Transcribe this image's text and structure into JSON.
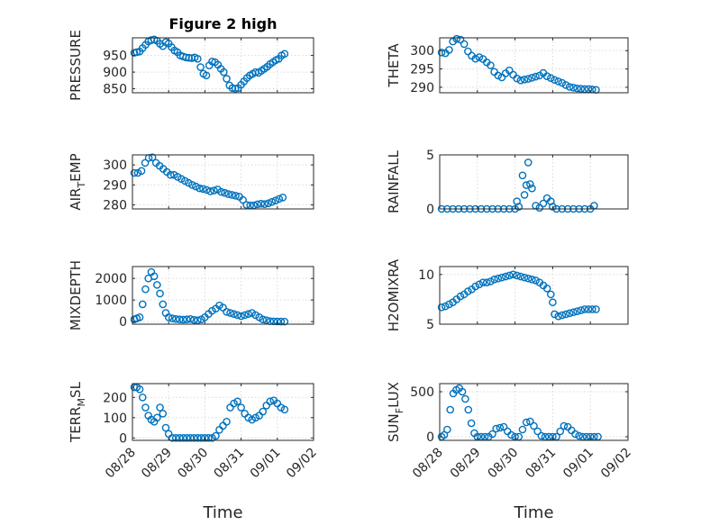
{
  "figure_title": "Figure 2 high",
  "x_label": "Time",
  "date_ticks": [
    "08/28",
    "08/29",
    "08/30",
    "08/31",
    "09/01",
    "09/02"
  ],
  "marker_color": "#0072BD",
  "chart_data": [
    {
      "type": "scatter",
      "name": "PRESSURE",
      "ylabel": "PRESSURE",
      "xlim": [
        "08/28",
        "09/02"
      ],
      "ylim": [
        838,
        1003
      ],
      "yticks": [
        850,
        900,
        950
      ],
      "grid": true,
      "x": [
        0.05,
        0.12,
        0.2,
        0.28,
        0.36,
        0.44,
        0.52,
        0.6,
        0.68,
        0.76,
        0.84,
        0.92,
        1.0,
        1.08,
        1.16,
        1.24,
        1.32,
        1.4,
        1.48,
        1.56,
        1.64,
        1.72,
        1.8,
        1.88,
        1.96,
        2.04,
        2.12,
        2.2,
        2.28,
        2.36,
        2.44,
        2.52,
        2.6,
        2.68,
        2.76,
        2.84,
        2.92,
        3.0,
        3.08,
        3.16,
        3.24,
        3.32,
        3.4,
        3.48,
        3.56,
        3.64,
        3.72,
        3.8,
        3.88,
        3.96,
        4.04,
        4.12,
        4.2
      ],
      "y": [
        958,
        960,
        962,
        972,
        982,
        992,
        996,
        998,
        994,
        985,
        978,
        990,
        986,
        975,
        965,
        960,
        950,
        947,
        944,
        943,
        942,
        944,
        940,
        915,
        895,
        890,
        920,
        932,
        930,
        922,
        910,
        900,
        880,
        860,
        852,
        850,
        852,
        862,
        872,
        882,
        890,
        895,
        900,
        898,
        904,
        910,
        916,
        924,
        930,
        936,
        940,
        950,
        955
      ]
    },
    {
      "type": "scatter",
      "name": "THETA",
      "ylabel": "THETA",
      "xlim": [
        "08/28",
        "09/02"
      ],
      "ylim": [
        288.5,
        303.5
      ],
      "yticks": [
        290,
        295,
        300
      ],
      "grid": true,
      "x": [
        0.05,
        0.15,
        0.25,
        0.35,
        0.45,
        0.55,
        0.65,
        0.75,
        0.85,
        0.95,
        1.05,
        1.15,
        1.25,
        1.35,
        1.45,
        1.55,
        1.65,
        1.75,
        1.85,
        1.95,
        2.05,
        2.15,
        2.25,
        2.35,
        2.45,
        2.55,
        2.65,
        2.75,
        2.85,
        2.95,
        3.05,
        3.15,
        3.25,
        3.35,
        3.45,
        3.55,
        3.65,
        3.75,
        3.85,
        3.95,
        4.05,
        4.15
      ],
      "y": [
        299.5,
        299.3,
        300.2,
        302.5,
        303.2,
        303.0,
        301.8,
        299.8,
        298.6,
        297.8,
        298.2,
        297.7,
        296.8,
        296.0,
        294.2,
        293.2,
        292.7,
        293.8,
        294.6,
        293.4,
        292.4,
        291.9,
        292.1,
        292.3,
        292.6,
        292.9,
        293.2,
        293.9,
        293.0,
        292.5,
        292.0,
        291.6,
        291.2,
        290.6,
        290.1,
        289.9,
        289.7,
        289.6,
        289.5,
        289.5,
        289.4,
        289.3
      ]
    },
    {
      "type": "scatter",
      "name": "AIR_TEMP",
      "ylabel": "AIR_TEMP",
      "xlim": [
        "08/28",
        "09/02"
      ],
      "ylim": [
        278,
        305
      ],
      "yticks": [
        280,
        290,
        300
      ],
      "grid": true,
      "x": [
        0.05,
        0.15,
        0.25,
        0.35,
        0.45,
        0.55,
        0.65,
        0.75,
        0.85,
        0.95,
        1.05,
        1.15,
        1.25,
        1.35,
        1.45,
        1.55,
        1.65,
        1.75,
        1.85,
        1.95,
        2.05,
        2.15,
        2.25,
        2.35,
        2.45,
        2.55,
        2.65,
        2.75,
        2.85,
        2.95,
        3.05,
        3.15,
        3.25,
        3.35,
        3.45,
        3.55,
        3.65,
        3.75,
        3.85,
        3.95,
        4.05,
        4.15
      ],
      "y": [
        296,
        296,
        297,
        301,
        303.5,
        303.8,
        301,
        299.5,
        298,
        296.5,
        295,
        295,
        294,
        293,
        292,
        291,
        290,
        289.2,
        288.3,
        288,
        287.5,
        286.8,
        287.2,
        287.7,
        286.5,
        286,
        285.4,
        285,
        284.6,
        284.1,
        282.5,
        280,
        279.8,
        279.8,
        280.3,
        280.6,
        280.4,
        280.8,
        281.5,
        282.2,
        283,
        283.7
      ]
    },
    {
      "type": "scatter",
      "name": "RAINFALL",
      "ylabel": "RAINFALL",
      "xlim": [
        "08/28",
        "09/02"
      ],
      "ylim": [
        0,
        5
      ],
      "yticks": [
        0,
        5
      ],
      "grid": true,
      "x": [
        0.05,
        0.2,
        0.35,
        0.5,
        0.65,
        0.8,
        0.95,
        1.1,
        1.25,
        1.4,
        1.55,
        1.7,
        1.85,
        2.0,
        2.05,
        2.1,
        2.2,
        2.25,
        2.3,
        2.35,
        2.4,
        2.45,
        2.55,
        2.65,
        2.75,
        2.85,
        2.95,
        3.0,
        3.1,
        3.25,
        3.4,
        3.55,
        3.7,
        3.85,
        4.0,
        4.1
      ],
      "y": [
        0,
        0,
        0,
        0,
        0,
        0,
        0,
        0,
        0,
        0,
        0,
        0,
        0,
        0,
        0.7,
        0.2,
        3.1,
        1.3,
        2.2,
        4.3,
        2.3,
        1.9,
        0.3,
        0.1,
        0.5,
        1.0,
        0.7,
        0.2,
        0,
        0,
        0,
        0,
        0,
        0,
        0,
        0.3
      ]
    },
    {
      "type": "scatter",
      "name": "MIXDEPTH",
      "ylabel": "MIXDEPTH",
      "xlim": [
        "08/28",
        "09/02"
      ],
      "ylim": [
        -120,
        2550
      ],
      "yticks": [
        0,
        1000,
        2000
      ],
      "grid": true,
      "x": [
        0.05,
        0.12,
        0.2,
        0.28,
        0.36,
        0.44,
        0.52,
        0.6,
        0.68,
        0.76,
        0.84,
        0.92,
        1.0,
        1.1,
        1.2,
        1.3,
        1.4,
        1.5,
        1.6,
        1.7,
        1.8,
        1.9,
        2.0,
        2.1,
        2.2,
        2.3,
        2.4,
        2.5,
        2.6,
        2.7,
        2.8,
        2.9,
        3.0,
        3.1,
        3.2,
        3.3,
        3.4,
        3.5,
        3.6,
        3.7,
        3.8,
        3.9,
        4.0,
        4.1,
        4.2
      ],
      "y": [
        100,
        150,
        200,
        800,
        1500,
        2000,
        2300,
        2100,
        1700,
        1300,
        800,
        400,
        200,
        150,
        120,
        100,
        90,
        100,
        120,
        80,
        60,
        100,
        200,
        350,
        500,
        600,
        750,
        650,
        450,
        400,
        350,
        300,
        250,
        300,
        350,
        400,
        300,
        200,
        100,
        60,
        20,
        10,
        5,
        3,
        0
      ]
    },
    {
      "type": "scatter",
      "name": "H2OMIXRA",
      "ylabel": "H2OMIXRA",
      "xlim": [
        "08/28",
        "09/02"
      ],
      "ylim": [
        5,
        10.8
      ],
      "yticks": [
        5,
        10
      ],
      "grid": true,
      "x": [
        0.05,
        0.15,
        0.25,
        0.35,
        0.45,
        0.55,
        0.65,
        0.75,
        0.85,
        0.95,
        1.05,
        1.15,
        1.25,
        1.35,
        1.45,
        1.55,
        1.65,
        1.75,
        1.85,
        1.95,
        2.05,
        2.15,
        2.25,
        2.35,
        2.45,
        2.55,
        2.65,
        2.75,
        2.85,
        2.95,
        3.0,
        3.05,
        3.15,
        3.25,
        3.35,
        3.45,
        3.55,
        3.65,
        3.75,
        3.85,
        3.95,
        4.05,
        4.15
      ],
      "y": [
        6.7,
        6.8,
        7.0,
        7.2,
        7.5,
        7.8,
        8.0,
        8.3,
        8.5,
        8.8,
        9.0,
        9.2,
        9.2,
        9.3,
        9.5,
        9.6,
        9.7,
        9.8,
        9.9,
        10.0,
        9.9,
        9.8,
        9.7,
        9.6,
        9.5,
        9.4,
        9.2,
        8.9,
        8.6,
        8.0,
        7.2,
        6.0,
        5.8,
        5.9,
        6.0,
        6.1,
        6.2,
        6.3,
        6.4,
        6.5,
        6.5,
        6.5,
        6.5
      ]
    },
    {
      "type": "scatter",
      "name": "TERR_MSL",
      "ylabel": "TERR_MSL",
      "xlim": [
        "08/28",
        "09/02"
      ],
      "ylim": [
        -12,
        268
      ],
      "yticks": [
        0,
        100,
        200
      ],
      "grid": true,
      "x": [
        0.05,
        0.12,
        0.2,
        0.28,
        0.36,
        0.44,
        0.52,
        0.6,
        0.68,
        0.76,
        0.84,
        0.92,
        1.0,
        1.1,
        1.2,
        1.3,
        1.4,
        1.5,
        1.6,
        1.7,
        1.8,
        1.9,
        2.0,
        2.1,
        2.2,
        2.3,
        2.4,
        2.5,
        2.6,
        2.7,
        2.8,
        2.9,
        3.0,
        3.1,
        3.2,
        3.3,
        3.4,
        3.5,
        3.6,
        3.7,
        3.8,
        3.9,
        4.0,
        4.1,
        4.2
      ],
      "y": [
        250,
        250,
        240,
        200,
        150,
        110,
        90,
        80,
        100,
        150,
        120,
        50,
        20,
        0,
        0,
        0,
        0,
        0,
        0,
        0,
        0,
        0,
        0,
        0,
        0,
        10,
        40,
        60,
        80,
        150,
        170,
        180,
        150,
        120,
        100,
        90,
        100,
        110,
        130,
        160,
        180,
        185,
        170,
        150,
        140
      ]
    },
    {
      "type": "scatter",
      "name": "SUN_FLUX",
      "ylabel": "SUN_FLUX",
      "xlim": [
        "08/28",
        "09/02"
      ],
      "ylim": [
        -40,
        590
      ],
      "yticks": [
        0,
        500
      ],
      "grid": true,
      "x": [
        0.05,
        0.12,
        0.2,
        0.28,
        0.36,
        0.44,
        0.52,
        0.6,
        0.68,
        0.76,
        0.84,
        0.92,
        1.0,
        1.1,
        1.2,
        1.3,
        1.4,
        1.5,
        1.6,
        1.7,
        1.8,
        1.9,
        2.0,
        2.1,
        2.2,
        2.3,
        2.4,
        2.5,
        2.6,
        2.7,
        2.8,
        2.9,
        3.0,
        3.1,
        3.2,
        3.3,
        3.4,
        3.5,
        3.6,
        3.7,
        3.8,
        3.9,
        4.0,
        4.1,
        4.2
      ],
      "y": [
        0,
        20,
        80,
        300,
        480,
        520,
        540,
        500,
        420,
        300,
        150,
        40,
        0,
        0,
        0,
        0,
        30,
        90,
        100,
        110,
        60,
        20,
        0,
        0,
        80,
        160,
        170,
        120,
        60,
        10,
        0,
        0,
        0,
        0,
        60,
        120,
        110,
        70,
        30,
        10,
        0,
        0,
        0,
        0,
        0
      ]
    }
  ]
}
